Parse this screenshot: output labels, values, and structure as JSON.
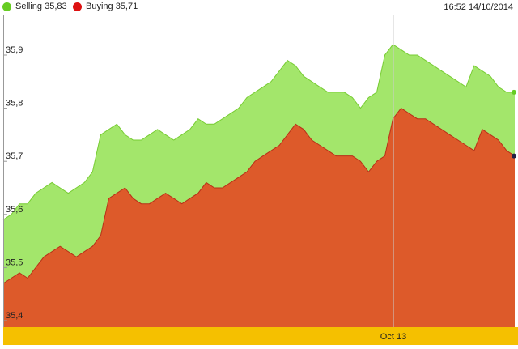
{
  "legend": {
    "selling_label": "Selling 35,83",
    "buying_label": "Buying 35,71",
    "timestamp": "16:52 14/10/2014"
  },
  "colors": {
    "selling": "#a3e66b",
    "selling_line": "#77cc33",
    "selling_dot": "#66cc22",
    "buying": "#dd5a2a",
    "buying_line": "#b83018",
    "buying_dot": "#dd1111",
    "xaxis_band": "#f5c000"
  },
  "chart_data": {
    "type": "area",
    "title": "",
    "xlabel": "",
    "ylabel": "",
    "ylim": [
      35.4,
      35.9
    ],
    "yticks": [
      "35,4",
      "35,5",
      "35,6",
      "35,7",
      "35,8",
      "35,9"
    ],
    "xtick_labels": [
      "Oct 13"
    ],
    "grid": false,
    "legend_position": "top-left",
    "x": [
      0,
      1,
      2,
      3,
      4,
      5,
      6,
      7,
      8,
      9,
      10,
      11,
      12,
      13,
      14,
      15,
      16,
      17,
      18,
      19,
      20,
      21,
      22,
      23,
      24,
      25,
      26,
      27,
      28,
      29,
      30,
      31,
      32,
      33,
      34,
      35,
      36,
      37,
      38,
      39,
      40,
      41,
      42,
      43,
      44,
      45,
      46,
      47,
      48,
      49,
      50,
      51,
      52,
      53,
      54,
      55,
      56,
      57,
      58,
      59,
      60,
      61,
      62,
      63
    ],
    "series": [
      {
        "name": "Selling 35,83",
        "values": [
          35.59,
          35.6,
          35.62,
          35.62,
          35.64,
          35.65,
          35.66,
          35.65,
          35.64,
          35.65,
          35.66,
          35.68,
          35.75,
          35.76,
          35.77,
          35.75,
          35.74,
          35.74,
          35.75,
          35.76,
          35.75,
          35.74,
          35.75,
          35.76,
          35.78,
          35.77,
          35.77,
          35.78,
          35.79,
          35.8,
          35.82,
          35.83,
          35.84,
          35.85,
          35.87,
          35.89,
          35.88,
          35.86,
          35.85,
          35.84,
          35.83,
          35.83,
          35.83,
          35.82,
          35.8,
          35.82,
          35.83,
          35.9,
          35.92,
          35.91,
          35.9,
          35.9,
          35.89,
          35.88,
          35.87,
          35.86,
          35.85,
          35.84,
          35.88,
          35.87,
          35.86,
          35.84,
          35.83,
          35.83
        ]
      },
      {
        "name": "Buying 35,71",
        "values": [
          35.47,
          35.48,
          35.49,
          35.48,
          35.5,
          35.52,
          35.53,
          35.54,
          35.53,
          35.52,
          35.53,
          35.54,
          35.56,
          35.63,
          35.64,
          35.65,
          35.63,
          35.62,
          35.62,
          35.63,
          35.64,
          35.63,
          35.62,
          35.63,
          35.64,
          35.66,
          35.65,
          35.65,
          35.66,
          35.67,
          35.68,
          35.7,
          35.71,
          35.72,
          35.73,
          35.75,
          35.77,
          35.76,
          35.74,
          35.73,
          35.72,
          35.71,
          35.71,
          35.71,
          35.7,
          35.68,
          35.7,
          35.71,
          35.78,
          35.8,
          35.79,
          35.78,
          35.78,
          35.77,
          35.76,
          35.75,
          35.74,
          35.73,
          35.72,
          35.76,
          35.75,
          35.74,
          35.72,
          35.71
        ]
      }
    ]
  }
}
